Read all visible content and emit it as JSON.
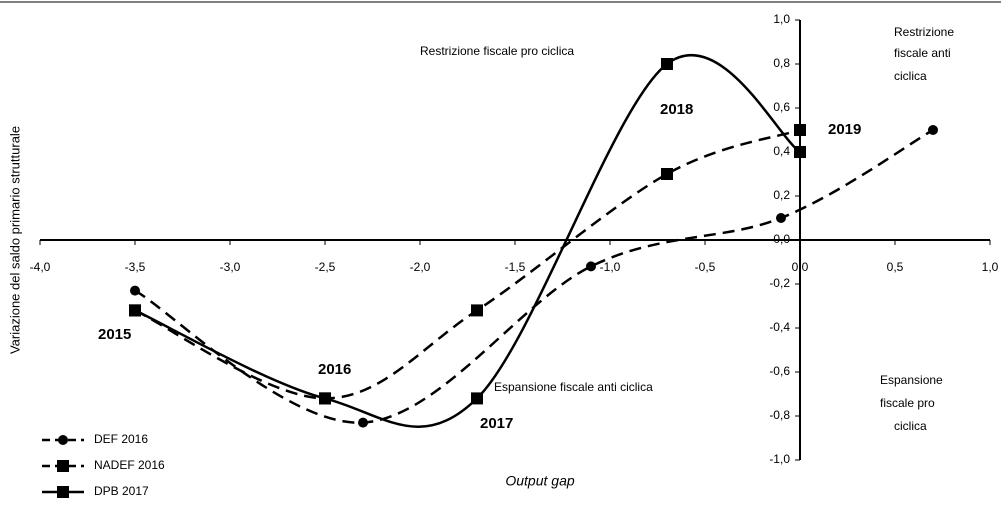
{
  "chart_data": {
    "type": "line",
    "xlabel": "Output gap",
    "ylabel": "Variazione del saldo primario strutturale",
    "xlim": [
      -4,
      1
    ],
    "ylim": [
      -1,
      1
    ],
    "xticks": [
      {
        "value": -4,
        "label": "-4,0"
      },
      {
        "value": -3.5,
        "label": "-3,5"
      },
      {
        "value": -3,
        "label": "-3,0"
      },
      {
        "value": -2.5,
        "label": "-2,5"
      },
      {
        "value": -2,
        "label": "-2,0"
      },
      {
        "value": -1.5,
        "label": "-1,5"
      },
      {
        "value": -1,
        "label": "-1,0"
      },
      {
        "value": -0.5,
        "label": "-0,5"
      },
      {
        "value": 0,
        "label": "0,0"
      },
      {
        "value": 0.5,
        "label": "0,5"
      },
      {
        "value": 1,
        "label": "1,0"
      }
    ],
    "yticks": [
      {
        "value": -1,
        "label": "-1,0"
      },
      {
        "value": -0.8,
        "label": "-0,8"
      },
      {
        "value": -0.6,
        "label": "-0,6"
      },
      {
        "value": -0.4,
        "label": "-0,4"
      },
      {
        "value": -0.2,
        "label": "-0,2"
      },
      {
        "value": 0,
        "label": "0,0"
      },
      {
        "value": 0.2,
        "label": "0,2"
      },
      {
        "value": 0.4,
        "label": "0,4"
      },
      {
        "value": 0.6,
        "label": "0,6"
      },
      {
        "value": 0.8,
        "label": "0,8"
      },
      {
        "value": 1,
        "label": "1,0"
      }
    ],
    "series": [
      {
        "name": "DEF 2016",
        "color": "#000000",
        "dashed": true,
        "marker": "circle",
        "x": [
          -3.5,
          -2.3,
          -1.1,
          -0.1,
          0.7
        ],
        "values": [
          -0.23,
          -0.83,
          -0.12,
          0.1,
          0.5
        ]
      },
      {
        "name": "NADEF 2016",
        "color": "#000000",
        "dashed": true,
        "marker": "square",
        "x": [
          -3.5,
          -2.5,
          -1.7,
          -0.7,
          0
        ],
        "values": [
          -0.32,
          -0.72,
          -0.32,
          0.3,
          0.5
        ]
      },
      {
        "name": "DPB 2017",
        "color": "#000000",
        "dashed": false,
        "marker": "square",
        "x": [
          -3.5,
          -2.5,
          -1.7,
          -0.7,
          0
        ],
        "values": [
          -0.32,
          -0.72,
          -0.72,
          0.8,
          0.4
        ]
      }
    ],
    "annotations": [
      "2015",
      "2016",
      "2017",
      "2018",
      "2019",
      "Restrizione fiscale pro ciclica",
      "Espansione fiscale anti ciclica",
      "Restrizione",
      "fiscale anti",
      "ciclica",
      "Espansione",
      "fiscale pro",
      "ciclica"
    ]
  }
}
